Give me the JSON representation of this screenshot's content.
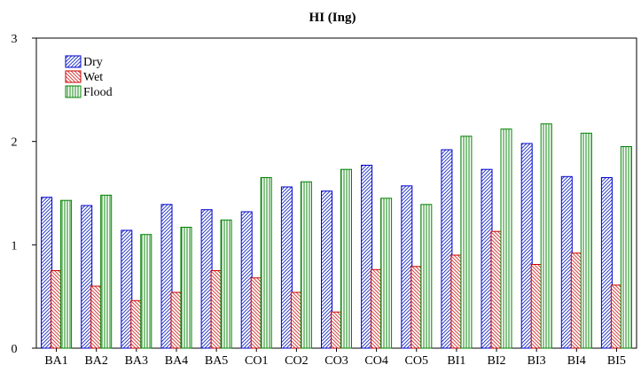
{
  "chart_data": {
    "type": "bar",
    "title": "HI (Ing)",
    "xlabel": "",
    "ylabel": "",
    "ylim": [
      0,
      3
    ],
    "yticks": [
      0,
      1,
      2,
      3
    ],
    "grid": false,
    "legend_position": "top-left",
    "categories": [
      "BA1",
      "BA2",
      "BA3",
      "BA4",
      "BA5",
      "CO1",
      "CO2",
      "CO3",
      "CO4",
      "CO5",
      "BI1",
      "BI2",
      "BI3",
      "BI4",
      "BI5"
    ],
    "series": [
      {
        "name": "Dry",
        "color": "#0000cc",
        "pattern": "diagonal-hatch",
        "values": [
          1.46,
          1.38,
          1.14,
          1.39,
          1.34,
          1.32,
          1.56,
          1.52,
          1.77,
          1.57,
          1.92,
          1.73,
          1.98,
          1.66,
          1.65
        ]
      },
      {
        "name": "Wet",
        "color": "#cc0000",
        "pattern": "diagonal-hatch",
        "values": [
          0.75,
          0.6,
          0.46,
          0.54,
          0.75,
          0.68,
          0.54,
          0.35,
          0.76,
          0.79,
          0.9,
          1.13,
          0.81,
          0.92,
          0.61
        ]
      },
      {
        "name": "Flood",
        "color": "#008000",
        "pattern": "vertical-lines",
        "values": [
          1.43,
          1.48,
          1.1,
          1.17,
          1.24,
          1.65,
          1.61,
          1.73,
          1.45,
          1.39,
          2.05,
          2.12,
          2.17,
          2.08,
          1.95
        ]
      }
    ]
  }
}
